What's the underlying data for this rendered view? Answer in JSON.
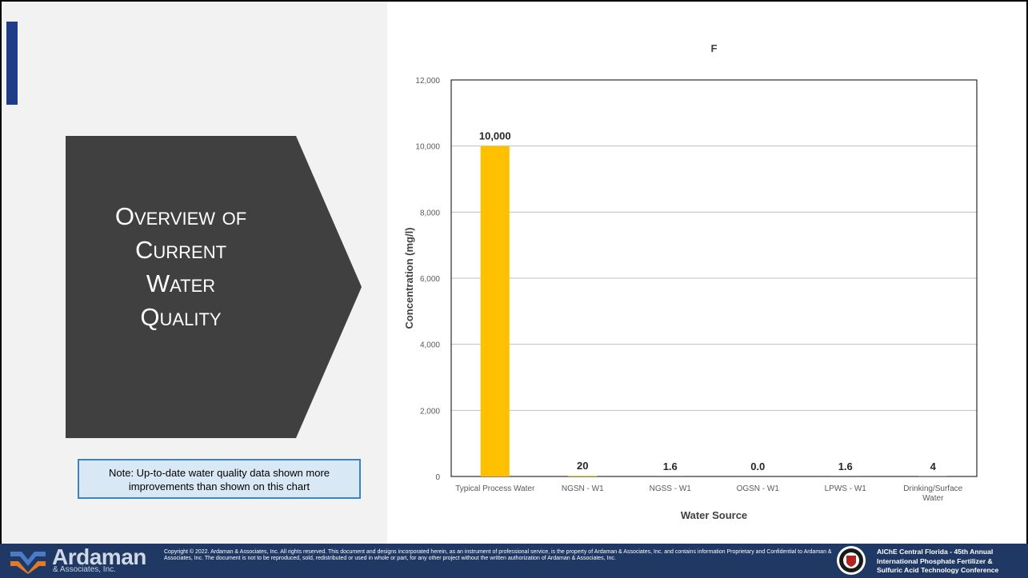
{
  "slide": {
    "title_lines": [
      "Overview of",
      "Current",
      "Water",
      "Quality"
    ],
    "note": "Note: Up-to-date water quality data shown more improvements than shown on this chart"
  },
  "footer": {
    "brand": "Ardaman",
    "brand_sub": "& Associates, Inc.",
    "copyright": "Copyright © 2022. Ardaman & Associates, Inc. All rights reserved. This document and designs incorporated herein, as an instrument of professional service, is the property of Ardaman & Associates, Inc. and contains information Proprietary and Confidential to Ardaman & Associates, Inc.  The document is not to be reproduced, sold, redistributed or used in whole or part, for any other project without the written authorization of Ardaman & Associates, Inc.",
    "conference_line1": "AIChE Central Florida - 45th Annual",
    "conference_line2": "International Phosphate Fertilizer &",
    "conference_line3": "Sulfuric Acid Technology Conference"
  },
  "colors": {
    "bar": "#ffc000",
    "title_shape": "#404040",
    "footer": "#203864",
    "accent": "#1f3c88"
  },
  "chart_data": {
    "type": "bar",
    "title": "F",
    "xlabel": "Water Source",
    "ylabel": "Concentration (mg/l)",
    "ylim": [
      0,
      12000
    ],
    "yticks": [
      0,
      2000,
      4000,
      6000,
      8000,
      10000,
      12000
    ],
    "ytick_labels": [
      "0",
      "2,000",
      "4,000",
      "6,000",
      "8,000",
      "10,000",
      "12,000"
    ],
    "grid": true,
    "categories": [
      [
        "Typical Process Water"
      ],
      [
        "NGSN - W1"
      ],
      [
        "NGSS - W1"
      ],
      [
        "OGSN - W1"
      ],
      [
        "LPWS - W1"
      ],
      [
        "Drinking/Surface",
        "Water"
      ]
    ],
    "values": [
      10000,
      20,
      1.6,
      0.0,
      1.6,
      4
    ],
    "data_labels": [
      "10,000",
      "20",
      "1.6",
      "0.0",
      "1.6",
      "4"
    ]
  }
}
